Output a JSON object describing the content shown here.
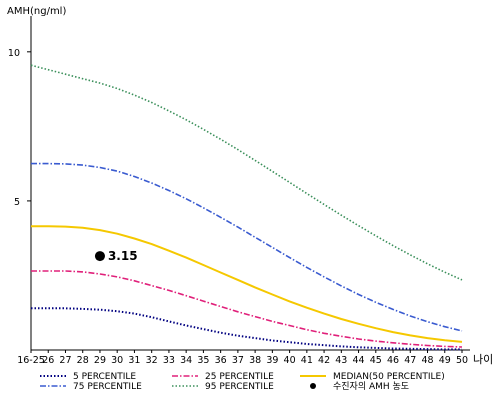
{
  "chart_data": {
    "type": "line",
    "ylabel": "AMH(ng/ml)",
    "xlabel": "나이",
    "ylim": [
      0,
      11
    ],
    "yticks": [
      5,
      10
    ],
    "categories": [
      "16-25",
      "26",
      "27",
      "28",
      "29",
      "30",
      "31",
      "32",
      "33",
      "34",
      "35",
      "36",
      "37",
      "38",
      "39",
      "40",
      "41",
      "42",
      "43",
      "44",
      "45",
      "46",
      "47",
      "48",
      "49",
      "50"
    ],
    "series": [
      {
        "name": "5 PERCENTILE",
        "color": "#000080",
        "dash": "1.5,2",
        "width": 2,
        "values": [
          1.4,
          1.4,
          1.4,
          1.38,
          1.35,
          1.3,
          1.22,
          1.1,
          0.96,
          0.82,
          0.7,
          0.58,
          0.48,
          0.4,
          0.32,
          0.26,
          0.2,
          0.16,
          0.12,
          0.09,
          0.07,
          0.05,
          0.04,
          0.03,
          0.02,
          0.02
        ]
      },
      {
        "name": "25 PERCENTILE",
        "color": "#e0207a",
        "dash": "6,2,1.5,2",
        "width": 1.6,
        "values": [
          2.65,
          2.65,
          2.65,
          2.62,
          2.55,
          2.45,
          2.32,
          2.16,
          2.0,
          1.82,
          1.64,
          1.46,
          1.28,
          1.12,
          0.96,
          0.82,
          0.68,
          0.56,
          0.46,
          0.37,
          0.3,
          0.24,
          0.19,
          0.15,
          0.12,
          0.1
        ]
      },
      {
        "name": "MEDIAN(50 PERCENTILE)",
        "color": "#f5c800",
        "dash": "",
        "width": 2,
        "values": [
          4.15,
          4.15,
          4.14,
          4.1,
          4.02,
          3.9,
          3.74,
          3.55,
          3.33,
          3.1,
          2.85,
          2.6,
          2.35,
          2.1,
          1.86,
          1.63,
          1.42,
          1.22,
          1.04,
          0.88,
          0.73,
          0.6,
          0.49,
          0.4,
          0.33,
          0.27
        ]
      },
      {
        "name": "75 PERCENTILE",
        "color": "#3a5bd0",
        "dash": "6,2,1.5,2",
        "width": 1.6,
        "values": [
          6.25,
          6.25,
          6.24,
          6.2,
          6.12,
          6.0,
          5.82,
          5.6,
          5.35,
          5.07,
          4.77,
          4.45,
          4.12,
          3.78,
          3.44,
          3.1,
          2.77,
          2.45,
          2.15,
          1.86,
          1.6,
          1.36,
          1.14,
          0.95,
          0.78,
          0.64
        ]
      },
      {
        "name": "95 PERCENTILE",
        "color": "#3a8f5a",
        "dash": "1.5,2",
        "width": 1.6,
        "values": [
          9.55,
          9.4,
          9.25,
          9.1,
          8.95,
          8.77,
          8.55,
          8.3,
          8.02,
          7.72,
          7.4,
          7.07,
          6.72,
          6.36,
          5.99,
          5.62,
          5.25,
          4.88,
          4.52,
          4.17,
          3.83,
          3.5,
          3.19,
          2.89,
          2.61,
          2.35
        ]
      }
    ],
    "points": [
      {
        "name": "수진자의 AMH 농도",
        "category": "29",
        "value": 3.15,
        "label": "3.15",
        "color": "#000000"
      }
    ],
    "legend": {
      "placement": "bottom",
      "items": [
        {
          "label": "5 PERCENTILE",
          "series": 0
        },
        {
          "label": "25 PERCENTILE",
          "series": 1
        },
        {
          "label": "MEDIAN(50 PERCENTILE)",
          "series": 2
        },
        {
          "label": "75 PERCENTILE",
          "series": 3
        },
        {
          "label": "95 PERCENTILE",
          "series": 4
        },
        {
          "label": "수진자의 AMH 농도",
          "point": 0
        }
      ]
    }
  }
}
